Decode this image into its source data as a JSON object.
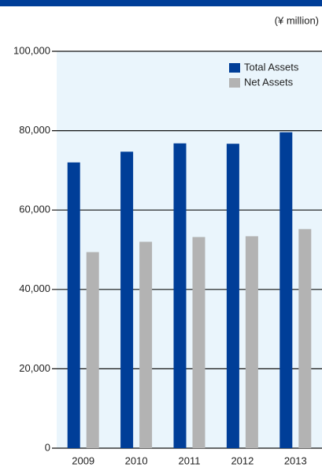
{
  "chart_data": {
    "type": "bar",
    "unit": "(¥ million)",
    "categories": [
      "2009",
      "2010",
      "2011",
      "2012",
      "2013"
    ],
    "series": [
      {
        "name": "Total Assets",
        "color": "#003e98",
        "values": [
          72000,
          74700,
          76800,
          76700,
          79600
        ]
      },
      {
        "name": "Net Assets",
        "color": "#b3b3b3",
        "values": [
          49400,
          52000,
          53200,
          53400,
          55200
        ]
      }
    ],
    "ylim": [
      0,
      100000
    ],
    "yticks": [
      0,
      {
        "value": 20000,
        "label": "20,000"
      },
      {
        "value": 40000,
        "label": "40,000"
      },
      {
        "value": 60000,
        "label": "60,000"
      },
      {
        "value": 80000,
        "label": "80,000"
      },
      {
        "value": 100000,
        "label": "100,000"
      }
    ],
    "grid": true,
    "legend": "top-right"
  }
}
